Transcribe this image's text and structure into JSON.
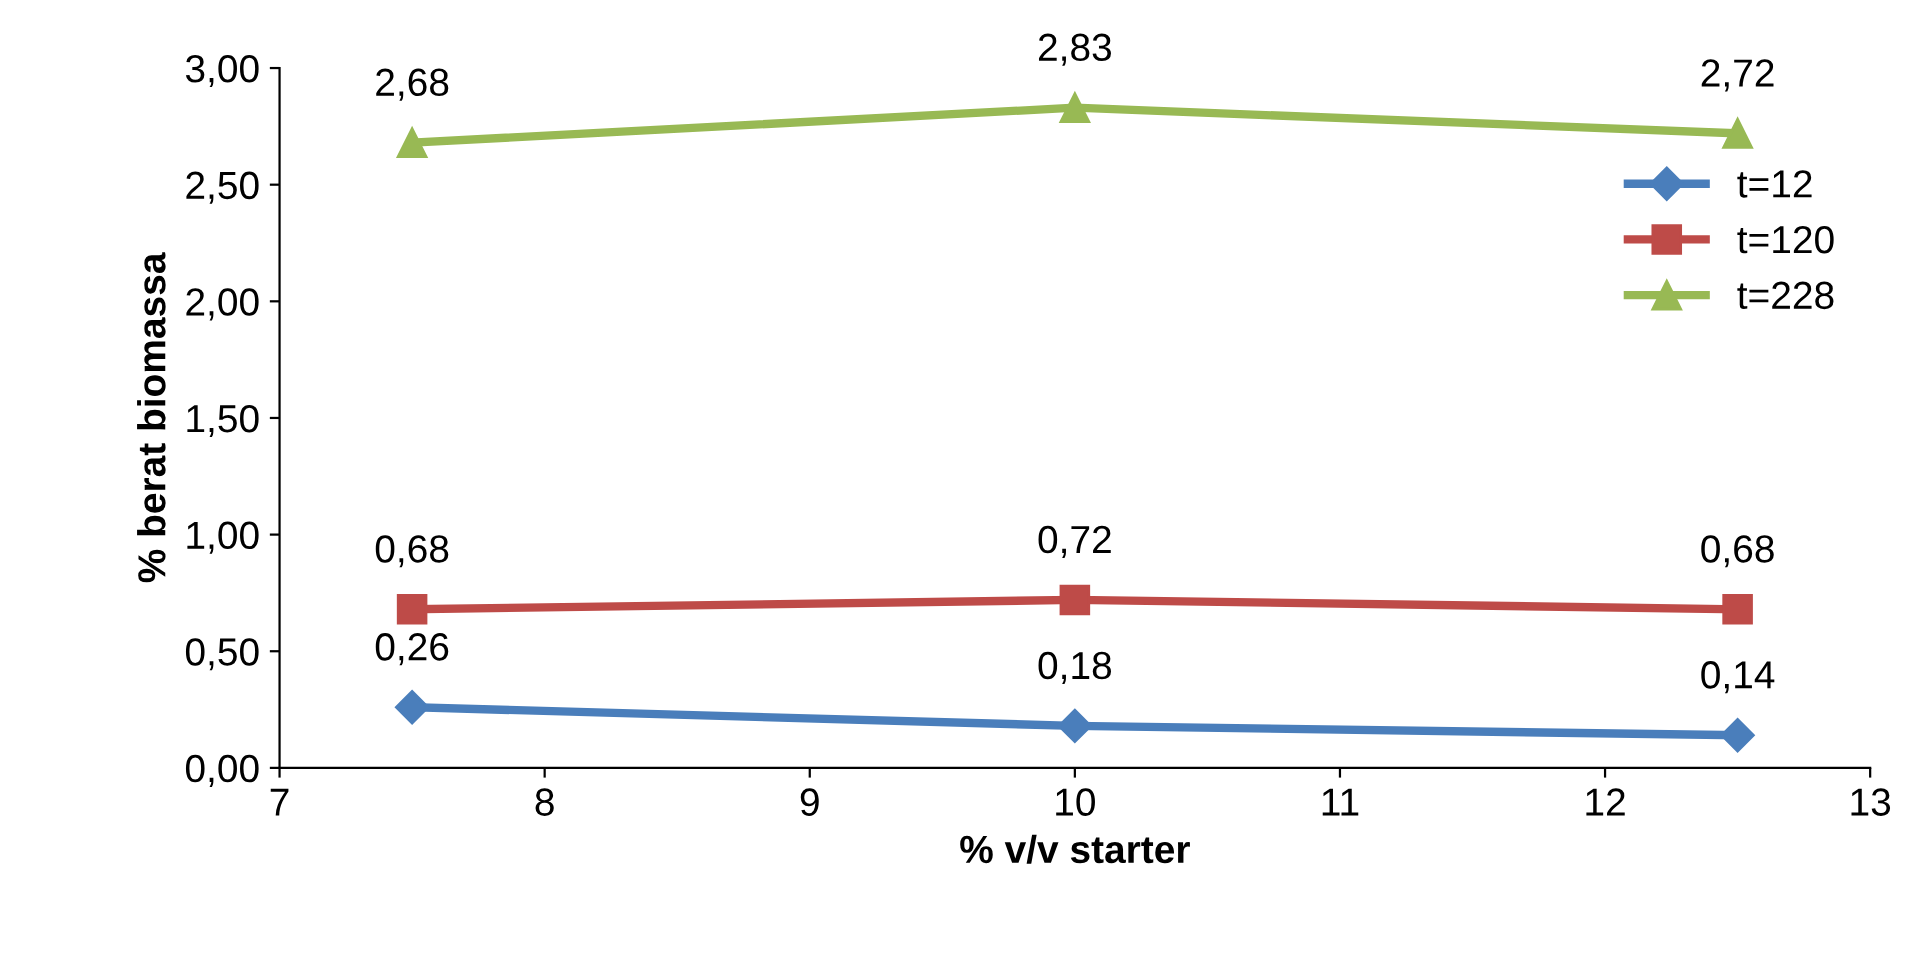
{
  "chart_data": {
    "type": "line",
    "xlabel": "% v/v starter",
    "ylabel": "% berat biomassa",
    "xlim": [
      7,
      13
    ],
    "xticks": [
      7,
      8,
      9,
      10,
      11,
      12,
      13
    ],
    "ylim": [
      0,
      3
    ],
    "yticks": [
      {
        "value": 0,
        "label": "0,00"
      },
      {
        "value": 0.5,
        "label": "0,50"
      },
      {
        "value": 1,
        "label": "1,00"
      },
      {
        "value": 1.5,
        "label": "1,50"
      },
      {
        "value": 2,
        "label": "2,00"
      },
      {
        "value": 2.5,
        "label": "2,50"
      },
      {
        "value": 3,
        "label": "3,00"
      }
    ],
    "grid": false,
    "legend": "right",
    "line_style": "solid",
    "series": [
      {
        "name": "t=12",
        "color": "#4a7ebb",
        "marker": "diamond",
        "x": [
          7.5,
          10,
          12.5
        ],
        "values": [
          0.26,
          0.18,
          0.14
        ],
        "value_labels": [
          "0,26",
          "0,18",
          "0,14"
        ]
      },
      {
        "name": "t=120",
        "color": "#be4b48",
        "marker": "square",
        "x": [
          7.5,
          10,
          12.5
        ],
        "values": [
          0.68,
          0.72,
          0.68
        ],
        "value_labels": [
          "0,68",
          "0,72",
          "0,68"
        ]
      },
      {
        "name": "t=228",
        "color": "#98b954",
        "marker": "triangle",
        "x": [
          7.5,
          10,
          12.5
        ],
        "values": [
          2.68,
          2.83,
          2.72
        ],
        "value_labels": [
          "2,68",
          "2,83",
          "2,72"
        ]
      }
    ]
  }
}
